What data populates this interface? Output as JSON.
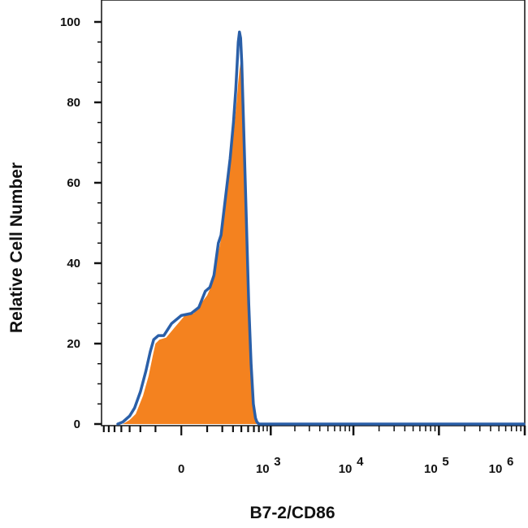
{
  "chart_data": {
    "type": "area",
    "title": "",
    "xlabel": "B7-2/CD86",
    "ylabel": "Relative Cell Number",
    "x_scale": "biexponential",
    "x_tick_labels": [
      {
        "value": 0,
        "base": "0",
        "exp": ""
      },
      {
        "value": 1000,
        "base": "10",
        "exp": "3"
      },
      {
        "value": 10000,
        "base": "10",
        "exp": "4"
      },
      {
        "value": 100000,
        "base": "10",
        "exp": "5"
      },
      {
        "value": 1000000,
        "base": "10",
        "exp": "6"
      }
    ],
    "y_ticks": [
      0,
      20,
      40,
      60,
      80,
      100
    ],
    "ylim": [
      0,
      100
    ],
    "grid": false,
    "legend": "none",
    "series": [
      {
        "style": "filled",
        "color": "#f4821f",
        "points": [
          [
            -380,
            0
          ],
          [
            -300,
            1
          ],
          [
            -240,
            2.5
          ],
          [
            -180,
            7
          ],
          [
            -140,
            12
          ],
          [
            -115,
            17
          ],
          [
            -100,
            20
          ],
          [
            -80,
            21
          ],
          [
            -50,
            21.5
          ],
          [
            -20,
            24
          ],
          [
            10,
            27
          ],
          [
            40,
            27.5
          ],
          [
            70,
            30
          ],
          [
            100,
            32
          ],
          [
            130,
            35
          ],
          [
            160,
            41
          ],
          [
            190,
            46
          ],
          [
            230,
            55
          ],
          [
            270,
            64
          ],
          [
            310,
            73
          ],
          [
            340,
            80
          ],
          [
            360,
            85
          ],
          [
            375,
            88
          ],
          [
            390,
            90
          ],
          [
            400,
            89
          ],
          [
            420,
            82
          ],
          [
            445,
            68
          ],
          [
            480,
            45
          ],
          [
            520,
            25
          ],
          [
            560,
            12
          ],
          [
            600,
            4
          ],
          [
            640,
            1
          ],
          [
            680,
            0
          ]
        ]
      },
      {
        "style": "line",
        "color": "#2a5fa8",
        "points": [
          [
            -450,
            0
          ],
          [
            -380,
            0.5
          ],
          [
            -300,
            2
          ],
          [
            -250,
            4
          ],
          [
            -200,
            8
          ],
          [
            -160,
            13
          ],
          [
            -130,
            18
          ],
          [
            -110,
            21
          ],
          [
            -85,
            22
          ],
          [
            -60,
            22
          ],
          [
            -30,
            25
          ],
          [
            0,
            27
          ],
          [
            30,
            27.5
          ],
          [
            60,
            29
          ],
          [
            90,
            33
          ],
          [
            115,
            34
          ],
          [
            140,
            37
          ],
          [
            170,
            45
          ],
          [
            190,
            47
          ],
          [
            230,
            57
          ],
          [
            270,
            66
          ],
          [
            305,
            75
          ],
          [
            330,
            83
          ],
          [
            345,
            89
          ],
          [
            360,
            95
          ],
          [
            375,
            97.5
          ],
          [
            390,
            96
          ],
          [
            405,
            90
          ],
          [
            430,
            75
          ],
          [
            470,
            52
          ],
          [
            510,
            30
          ],
          [
            550,
            15
          ],
          [
            590,
            5
          ],
          [
            630,
            1.5
          ],
          [
            660,
            0.5
          ],
          [
            700,
            0
          ],
          [
            1000,
            0
          ],
          [
            10000,
            0
          ],
          [
            100000,
            0
          ],
          [
            1000000,
            0
          ]
        ]
      }
    ]
  }
}
